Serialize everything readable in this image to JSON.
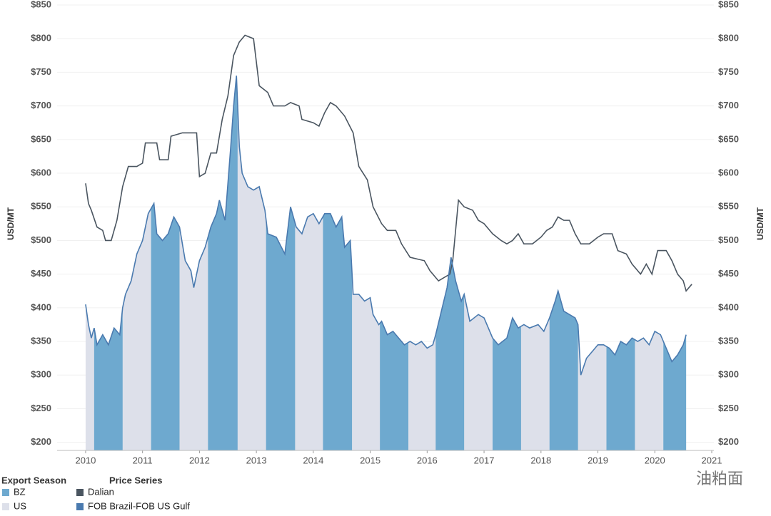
{
  "chart_data": {
    "type": "line",
    "ylabel": "USD/MT",
    "y2label": "USD/MT",
    "xlim": [
      2009.75,
      2021.0
    ],
    "xticks": [
      2010,
      2011,
      2012,
      2013,
      2014,
      2015,
      2016,
      2017,
      2018,
      2019,
      2020,
      2021
    ],
    "ylim": [
      188,
      855
    ],
    "yticks": [
      {
        "value": 200,
        "label": "$200"
      },
      {
        "value": 250,
        "label": "$250"
      },
      {
        "value": 300,
        "label": "$300"
      },
      {
        "value": 350,
        "label": "$350"
      },
      {
        "value": 400,
        "label": "$400"
      },
      {
        "value": 450,
        "label": "$450"
      },
      {
        "value": 500,
        "label": "$500"
      },
      {
        "value": 550,
        "label": "$550"
      },
      {
        "value": 600,
        "label": "$600"
      },
      {
        "value": 650,
        "label": "$650"
      },
      {
        "value": 700,
        "label": "$700"
      },
      {
        "value": 750,
        "label": "$750"
      },
      {
        "value": 800,
        "label": "$800"
      },
      {
        "value": 850,
        "label": "$850"
      }
    ],
    "y2lim": [
      188,
      855
    ],
    "y2ticks": [
      {
        "value": 200,
        "label": "$200"
      },
      {
        "value": 250,
        "label": "$250"
      },
      {
        "value": 300,
        "label": "$300"
      },
      {
        "value": 350,
        "label": "$350"
      },
      {
        "value": 400,
        "label": "$400"
      },
      {
        "value": 450,
        "label": "$450"
      },
      {
        "value": 500,
        "label": "$500"
      },
      {
        "value": 550,
        "label": "$550"
      },
      {
        "value": 600,
        "label": "$600"
      },
      {
        "value": 650,
        "label": "$650"
      },
      {
        "value": 700,
        "label": "$700"
      },
      {
        "value": 750,
        "label": "$750"
      },
      {
        "value": 800,
        "label": "$800"
      },
      {
        "value": 850,
        "label": "$850"
      }
    ],
    "grid": true,
    "legend_title": "Price Series",
    "series": [
      {
        "name": "Dalian",
        "color": "#4a5560",
        "x": [
          2010.0,
          2010.05,
          2010.1,
          2010.2,
          2010.3,
          2010.35,
          2010.45,
          2010.55,
          2010.65,
          2010.75,
          2010.9,
          2011.0,
          2011.05,
          2011.25,
          2011.3,
          2011.45,
          2011.5,
          2011.7,
          2011.95,
          2012.0,
          2012.1,
          2012.2,
          2012.3,
          2012.4,
          2012.5,
          2012.6,
          2012.7,
          2012.8,
          2012.95,
          2013.05,
          2013.2,
          2013.3,
          2013.5,
          2013.6,
          2013.75,
          2013.8,
          2014.0,
          2014.1,
          2014.2,
          2014.3,
          2014.4,
          2014.55,
          2014.7,
          2014.8,
          2014.95,
          2015.05,
          2015.2,
          2015.3,
          2015.45,
          2015.55,
          2015.7,
          2015.95,
          2016.05,
          2016.2,
          2016.3,
          2016.4,
          2016.45,
          2016.55,
          2016.65,
          2016.8,
          2016.9,
          2017.0,
          2017.15,
          2017.3,
          2017.4,
          2017.5,
          2017.6,
          2017.7,
          2017.85,
          2018.0,
          2018.1,
          2018.2,
          2018.3,
          2018.4,
          2018.5,
          2018.6,
          2018.7,
          2018.85,
          2019.0,
          2019.1,
          2019.25,
          2019.35,
          2019.5,
          2019.6,
          2019.75,
          2019.85,
          2019.95,
          2020.05,
          2020.2,
          2020.3,
          2020.4,
          2020.5,
          2020.55,
          2020.65
        ],
        "values": [
          585,
          555,
          545,
          520,
          515,
          500,
          500,
          530,
          580,
          610,
          610,
          615,
          645,
          645,
          620,
          620,
          655,
          660,
          660,
          595,
          600,
          630,
          630,
          680,
          715,
          775,
          795,
          805,
          800,
          730,
          720,
          700,
          700,
          705,
          700,
          680,
          675,
          670,
          690,
          705,
          700,
          685,
          660,
          610,
          590,
          550,
          525,
          515,
          515,
          495,
          475,
          470,
          455,
          440,
          445,
          450,
          470,
          560,
          550,
          545,
          530,
          525,
          510,
          500,
          495,
          500,
          510,
          495,
          495,
          505,
          515,
          520,
          535,
          530,
          530,
          510,
          495,
          495,
          505,
          510,
          510,
          485,
          480,
          465,
          450,
          465,
          450,
          485,
          485,
          470,
          450,
          440,
          425,
          435
        ]
      },
      {
        "name": "FOB Brazil-FOB US Gulf",
        "color": "#4a7aaf",
        "x": [
          2010.0,
          2010.05,
          2010.1,
          2010.15,
          2010.2,
          2010.3,
          2010.4,
          2010.5,
          2010.6,
          2010.65,
          2010.7,
          2010.8,
          2010.9,
          2011.0,
          2011.1,
          2011.2,
          2011.25,
          2011.35,
          2011.45,
          2011.55,
          2011.65,
          2011.75,
          2011.85,
          2011.9,
          2012.0,
          2012.1,
          2012.2,
          2012.3,
          2012.35,
          2012.45,
          2012.55,
          2012.6,
          2012.65,
          2012.7,
          2012.75,
          2012.85,
          2012.95,
          2013.05,
          2013.15,
          2013.2,
          2013.35,
          2013.5,
          2013.6,
          2013.7,
          2013.8,
          2013.9,
          2014.0,
          2014.1,
          2014.2,
          2014.3,
          2014.4,
          2014.5,
          2014.55,
          2014.65,
          2014.7,
          2014.8,
          2014.9,
          2015.0,
          2015.05,
          2015.15,
          2015.2,
          2015.3,
          2015.4,
          2015.5,
          2015.6,
          2015.7,
          2015.8,
          2015.9,
          2016.0,
          2016.1,
          2016.15,
          2016.25,
          2016.35,
          2016.42,
          2016.5,
          2016.6,
          2016.65,
          2016.75,
          2016.9,
          2017.0,
          2017.05,
          2017.15,
          2017.25,
          2017.4,
          2017.5,
          2017.6,
          2017.7,
          2017.8,
          2017.95,
          2018.05,
          2018.15,
          2018.25,
          2018.3,
          2018.4,
          2018.5,
          2018.6,
          2018.65,
          2018.7,
          2018.8,
          2018.9,
          2019.0,
          2019.1,
          2019.2,
          2019.3,
          2019.4,
          2019.5,
          2019.6,
          2019.7,
          2019.8,
          2019.9,
          2020.0,
          2020.1,
          2020.2,
          2020.3,
          2020.4,
          2020.5,
          2020.55
        ],
        "values": [
          405,
          375,
          355,
          370,
          345,
          360,
          345,
          370,
          360,
          400,
          420,
          440,
          480,
          500,
          540,
          555,
          510,
          500,
          510,
          535,
          520,
          470,
          455,
          430,
          470,
          490,
          520,
          540,
          560,
          530,
          640,
          700,
          745,
          640,
          600,
          580,
          575,
          580,
          545,
          510,
          505,
          480,
          550,
          520,
          510,
          535,
          540,
          525,
          540,
          540,
          520,
          535,
          490,
          500,
          420,
          420,
          410,
          415,
          390,
          375,
          380,
          360,
          365,
          355,
          345,
          350,
          345,
          350,
          340,
          345,
          360,
          395,
          430,
          475,
          440,
          410,
          420,
          380,
          390,
          385,
          375,
          355,
          345,
          355,
          385,
          370,
          375,
          370,
          375,
          365,
          385,
          410,
          425,
          395,
          390,
          385,
          375,
          300,
          325,
          335,
          345,
          345,
          340,
          330,
          350,
          345,
          355,
          350,
          355,
          345,
          365,
          360,
          340,
          320,
          330,
          345,
          360
        ]
      }
    ],
    "export_season": {
      "title": "Export Season",
      "series": [
        {
          "name": "BZ",
          "color": "#6ea9cf",
          "periods": [
            [
              2010.15,
              2010.65
            ],
            [
              2011.15,
              2011.65
            ],
            [
              2012.15,
              2012.67
            ],
            [
              2013.17,
              2013.68
            ],
            [
              2014.17,
              2014.68
            ],
            [
              2015.17,
              2015.67
            ],
            [
              2016.15,
              2016.65
            ],
            [
              2017.15,
              2017.65
            ],
            [
              2018.15,
              2018.65
            ],
            [
              2019.15,
              2019.65
            ],
            [
              2020.15,
              2020.55
            ]
          ]
        },
        {
          "name": "US",
          "color": "#dde0ea"
        }
      ]
    },
    "annotations": [
      "US",
      "BZ"
    ],
    "watermark": "油粕面"
  }
}
